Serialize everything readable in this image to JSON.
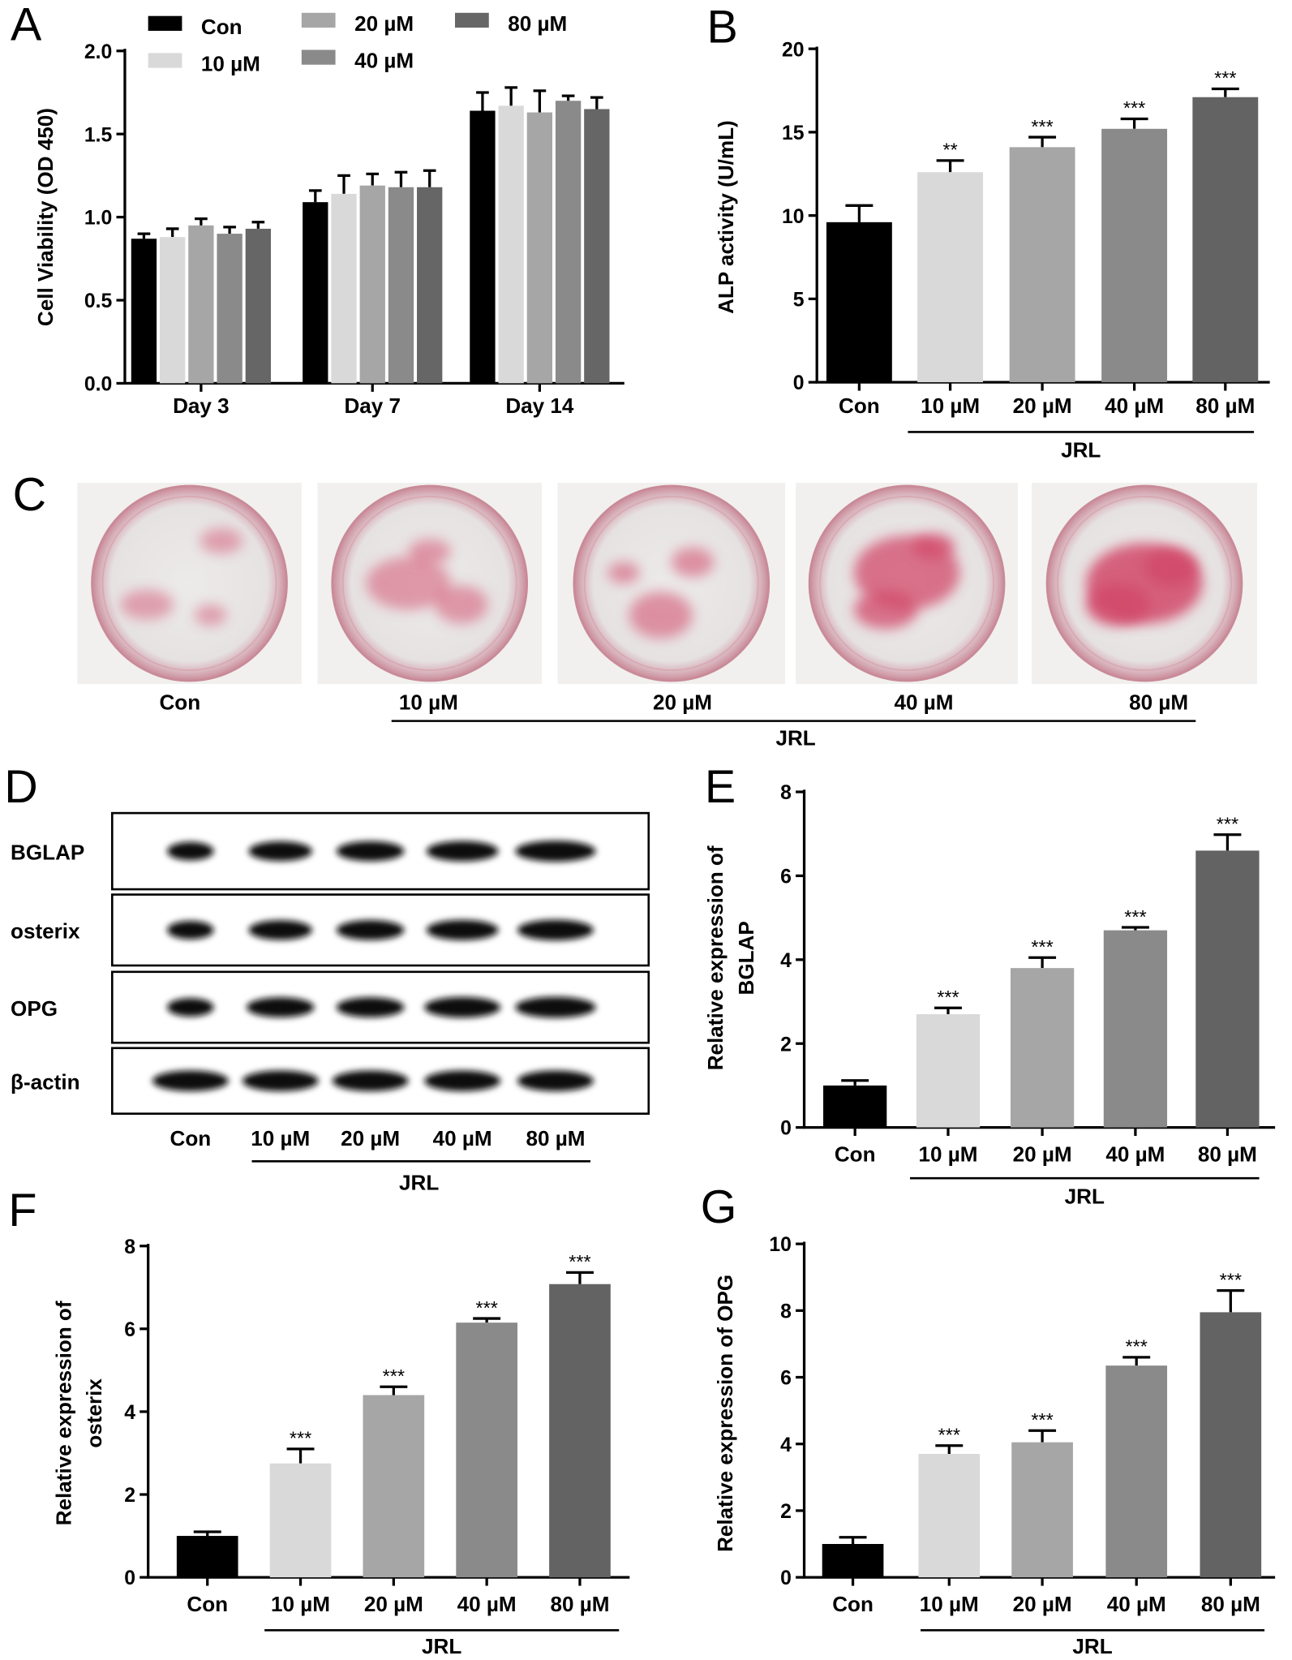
{
  "chart_data": [
    {
      "type": "grouped_bar",
      "label": "A",
      "ylabel": [
        "Cell Viability (OD 450)"
      ],
      "categories": [
        "Day 3",
        "Day 7",
        "Day 14"
      ],
      "series": [
        {
          "name": "Con",
          "color": "#000000",
          "values": [
            0.87,
            1.09,
            1.64
          ],
          "errors": [
            0.03,
            0.07,
            0.11
          ]
        },
        {
          "name": "10 µM",
          "color": "#d9d9d9",
          "values": [
            0.88,
            1.14,
            1.67
          ],
          "errors": [
            0.05,
            0.11,
            0.11
          ]
        },
        {
          "name": "20 µM",
          "color": "#a6a6a6",
          "values": [
            0.95,
            1.19,
            1.63
          ],
          "errors": [
            0.04,
            0.07,
            0.13
          ]
        },
        {
          "name": "40 µM",
          "color": "#8a8a8a",
          "values": [
            0.9,
            1.18,
            1.7
          ],
          "errors": [
            0.04,
            0.09,
            0.03
          ]
        },
        {
          "name": "80 µM",
          "color": "#666666",
          "values": [
            0.93,
            1.18,
            1.65
          ],
          "errors": [
            0.04,
            0.1,
            0.07
          ]
        }
      ],
      "ylim": [
        0,
        2
      ],
      "yticks": [
        {
          "value": 0,
          "label": "0.0"
        },
        {
          "value": 0.5,
          "label": "0.5"
        },
        {
          "value": 1,
          "label": "1.0"
        },
        {
          "value": 1.5,
          "label": "1.5"
        },
        {
          "value": 2,
          "label": "2.0"
        }
      ]
    },
    {
      "type": "bar",
      "label": "B",
      "ylabel": [
        "ALP activity (U/mL)"
      ],
      "categories": [
        "Con",
        "10 µM",
        "20 µM",
        "40 µM",
        "80 µM"
      ],
      "values": [
        9.6,
        12.6,
        14.1,
        15.2,
        17.1
      ],
      "errors": [
        1.0,
        0.7,
        0.6,
        0.6,
        0.5
      ],
      "annotations": [
        null,
        "**",
        "***",
        "***",
        "***"
      ],
      "colors": [
        "#000000",
        "#d9d9d9",
        "#a6a6a6",
        "#8a8a8a",
        "#636363"
      ],
      "group_label": "JRL",
      "ylim": [
        0,
        20
      ],
      "yticks": [
        0,
        5,
        10,
        15,
        20
      ]
    },
    {
      "type": "bar",
      "label": "E",
      "ylabel": [
        "Relative expression of",
        "BGLAP"
      ],
      "categories": [
        "Con",
        "10 µM",
        "20 µM",
        "40 µM",
        "80 µM"
      ],
      "values": [
        1.0,
        2.7,
        3.8,
        4.7,
        6.6
      ],
      "errors": [
        0.12,
        0.15,
        0.25,
        0.07,
        0.38
      ],
      "annotations": [
        null,
        "***",
        "***",
        "***",
        "***"
      ],
      "colors": [
        "#000000",
        "#d9d9d9",
        "#a6a6a6",
        "#8a8a8a",
        "#636363"
      ],
      "group_label": "JRL",
      "ylim": [
        0,
        8
      ],
      "yticks": [
        0,
        2,
        4,
        6,
        8
      ]
    },
    {
      "type": "bar",
      "label": "F",
      "ylabel": [
        "Relative expression of",
        "osterix"
      ],
      "categories": [
        "Con",
        "10 µM",
        "20 µM",
        "40 µM",
        "80 µM"
      ],
      "values": [
        1.0,
        2.75,
        4.4,
        6.15,
        7.08
      ],
      "errors": [
        0.1,
        0.35,
        0.2,
        0.1,
        0.28
      ],
      "annotations": [
        null,
        "***",
        "***",
        "***",
        "***"
      ],
      "colors": [
        "#000000",
        "#d9d9d9",
        "#a6a6a6",
        "#8a8a8a",
        "#636363"
      ],
      "group_label": "JRL",
      "ylim": [
        0,
        8
      ],
      "yticks": [
        0,
        2,
        4,
        6,
        8
      ]
    },
    {
      "type": "bar",
      "label": "G",
      "ylabel": [
        "Relative expression of OPG"
      ],
      "categories": [
        "Con",
        "10 µM",
        "20 µM",
        "40 µM",
        "80 µM"
      ],
      "values": [
        1.0,
        3.7,
        4.05,
        6.35,
        7.95
      ],
      "errors": [
        0.2,
        0.25,
        0.35,
        0.25,
        0.65
      ],
      "annotations": [
        null,
        "***",
        "***",
        "***",
        "***"
      ],
      "colors": [
        "#000000",
        "#d9d9d9",
        "#a6a6a6",
        "#8a8a8a",
        "#636363"
      ],
      "group_label": "JRL",
      "ylim": [
        0,
        10
      ],
      "yticks": [
        0,
        2,
        4,
        6,
        8,
        10
      ]
    }
  ],
  "stain_panel": {
    "label": "C",
    "lanes": [
      "Con",
      "10 µM",
      "20 µM",
      "40 µM",
      "80 µM"
    ],
    "group_label": "JRL"
  },
  "blot_panel": {
    "label": "D",
    "proteins": [
      "BGLAP",
      "osterix",
      "OPG",
      "β-actin"
    ],
    "lanes": [
      "Con",
      "10 µM",
      "20 µM",
      "40 µM",
      "80 µM"
    ],
    "group_label": "JRL"
  }
}
